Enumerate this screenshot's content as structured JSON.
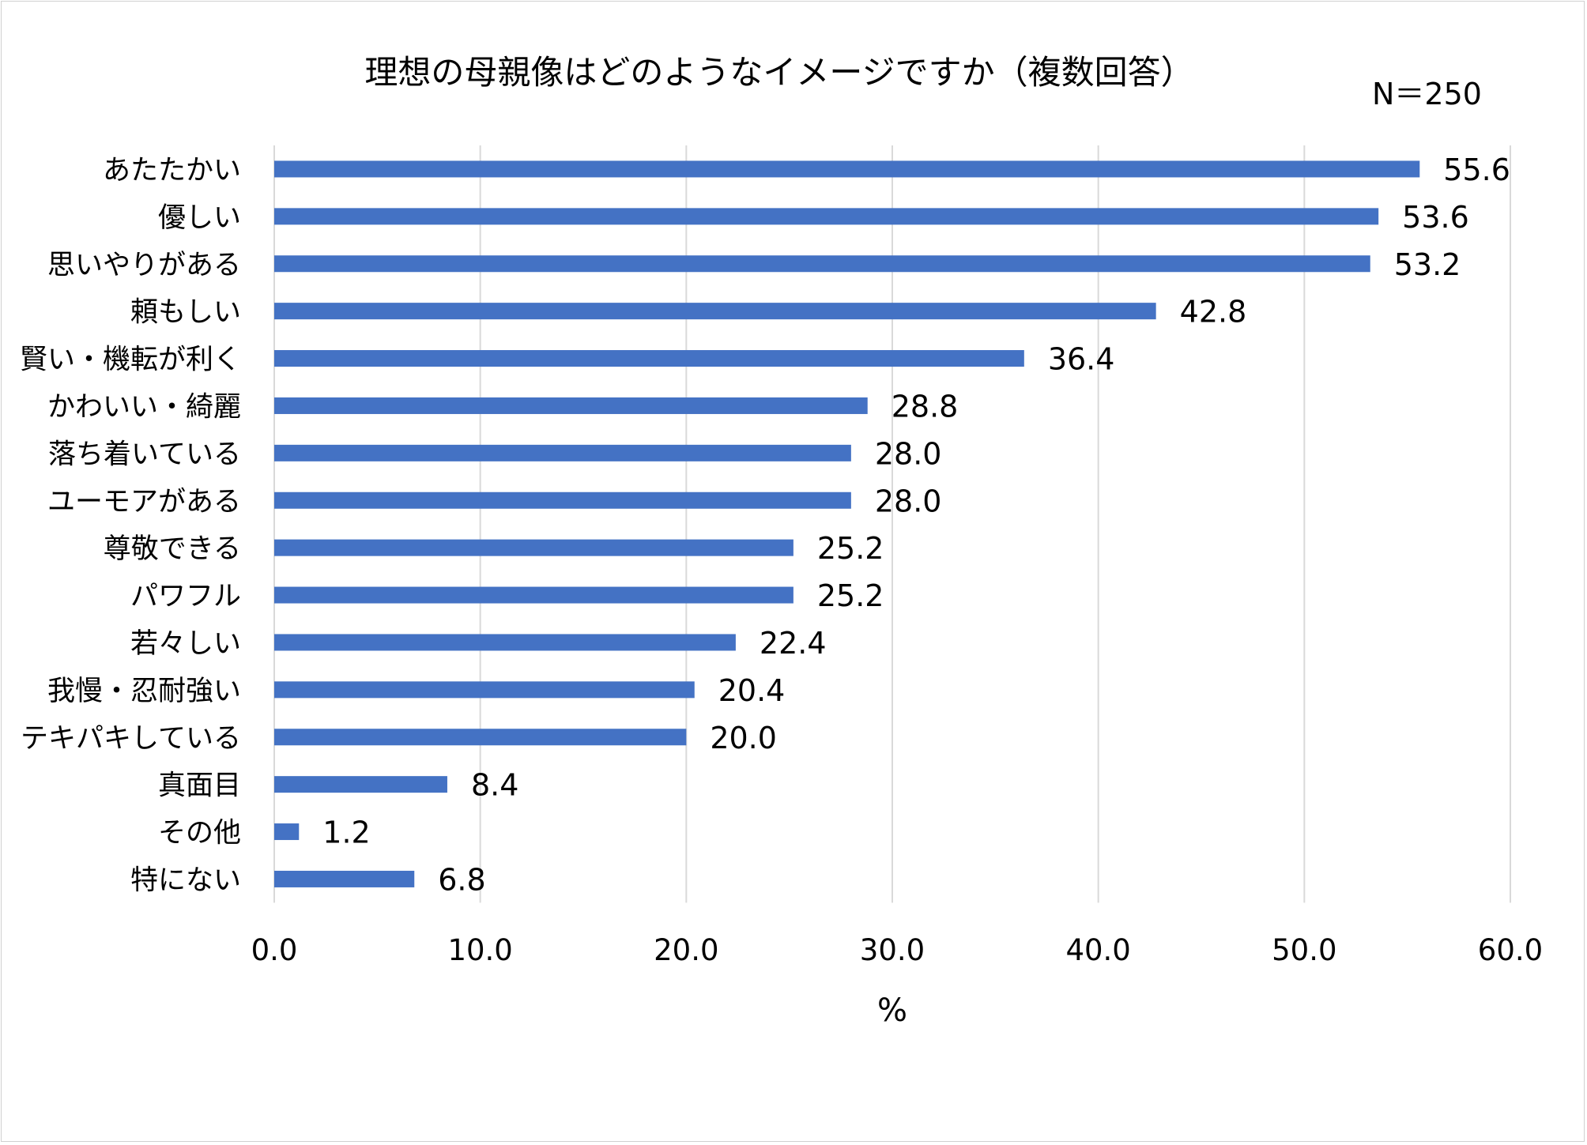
{
  "chart_data": {
    "type": "bar",
    "orientation": "horizontal",
    "title": "理想の母親像はどのようなイメージですか（複数回答）",
    "sample_size": "N＝250",
    "categories": [
      "あたたかい",
      "優しい",
      "思いやりがある",
      "頼もしい",
      "賢い・機転が利く",
      "かわいい・綺麗",
      "落ち着いている",
      "ユーモアがある",
      "尊敬できる",
      "パワフル",
      "若々しい",
      "我慢・忍耐強い",
      "テキパキしている",
      "真面目",
      "その他",
      "特にない"
    ],
    "values": [
      55.6,
      53.6,
      53.2,
      42.8,
      36.4,
      28.8,
      28.0,
      28.0,
      25.2,
      25.2,
      22.4,
      20.4,
      20.0,
      8.4,
      1.2,
      6.8
    ],
    "value_labels": [
      "55.6",
      "53.6",
      "53.2",
      "42.8",
      "36.4",
      "28.8",
      "28.0",
      "28.0",
      "25.2",
      "25.2",
      "22.4",
      "20.4",
      "20.0",
      "8.4",
      "1.2",
      "6.8"
    ],
    "xlabel": "%",
    "xlim": [
      0,
      60
    ],
    "xticks": [
      "0.0",
      "10.0",
      "20.0",
      "30.0",
      "40.0",
      "50.0",
      "60.0"
    ],
    "grid": true,
    "bar_color": "#4472C4",
    "grid_color": "#d9d9d9"
  }
}
